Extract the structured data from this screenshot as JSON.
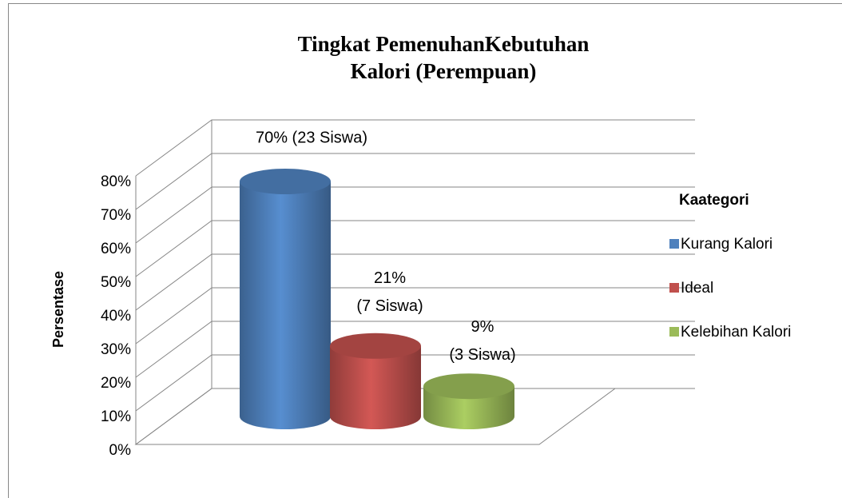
{
  "chart_data": {
    "type": "bar3d",
    "title": "Tingkat PemenuhanKebutuhan\nKalori (Perempuan)",
    "y_label": "Persentase",
    "legend_title": "Kaategori",
    "legend": "right",
    "ylim": [
      0,
      80
    ],
    "yticks": [
      {
        "value": 0,
        "label": "0%"
      },
      {
        "value": 10,
        "label": "10%"
      },
      {
        "value": 20,
        "label": "20%"
      },
      {
        "value": 30,
        "label": "30%"
      },
      {
        "value": 40,
        "label": "40%"
      },
      {
        "value": 50,
        "label": "50%"
      },
      {
        "value": 60,
        "label": "60%"
      },
      {
        "value": 70,
        "label": "70%"
      },
      {
        "value": 80,
        "label": "80%"
      }
    ],
    "grid": true,
    "series": [
      {
        "name": "Kurang Kalori",
        "color": "#4f81bd",
        "values": [
          70
        ],
        "value_labels": [
          "70% (23 Siswa)"
        ]
      },
      {
        "name": "Ideal",
        "color": "#c0504d",
        "values": [
          21
        ],
        "value_labels": [
          "21%\n(7 Siswa)"
        ]
      },
      {
        "name": "Kelebihan Kalori",
        "color": "#9bbb59",
        "values": [
          9
        ],
        "value_labels": [
          "9%\n(3 Siswa)"
        ]
      }
    ]
  }
}
